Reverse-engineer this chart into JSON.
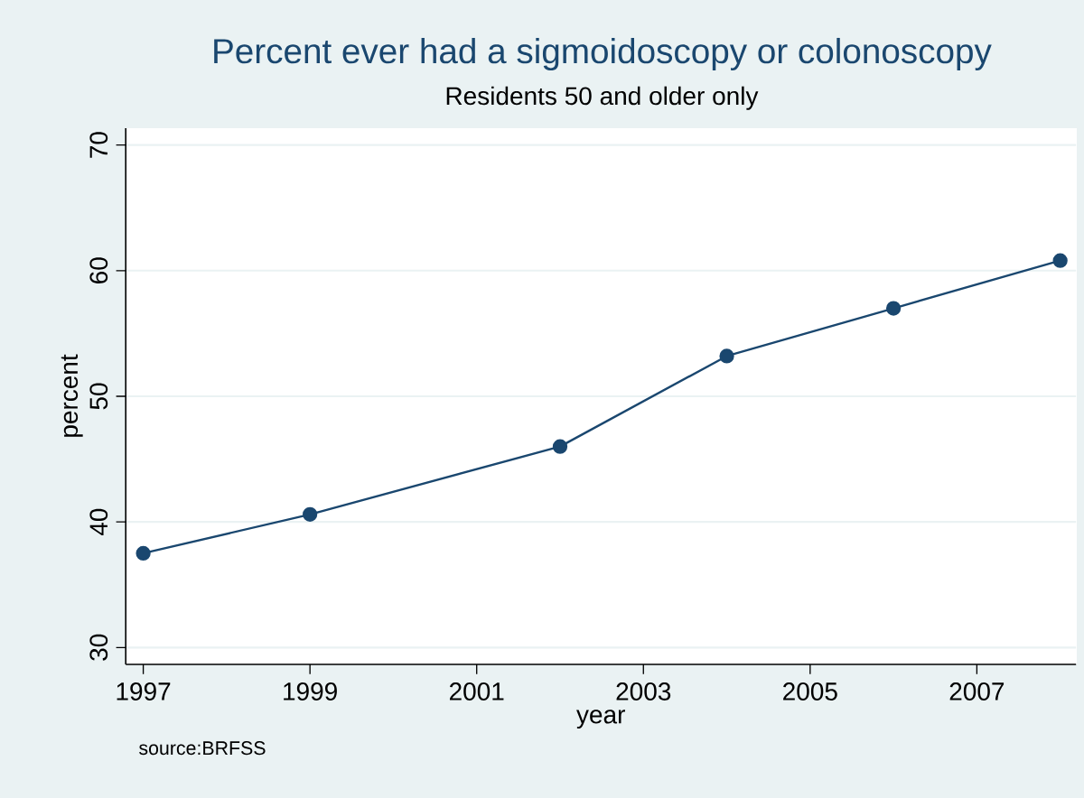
{
  "chart_data": {
    "type": "line",
    "title": "Percent  ever had a sigmoidoscopy or colonoscopy",
    "subtitle": "Residents 50 and older only",
    "xlabel": "year",
    "ylabel": "percent",
    "x": [
      1997,
      1999,
      2002,
      2004,
      2006,
      2008
    ],
    "series": [
      {
        "color": "#1a476f",
        "values": [
          37.5,
          40.6,
          46.0,
          53.2,
          57.0,
          60.8
        ]
      }
    ],
    "xlim": [
      1996.79,
      2008.19
    ],
    "ylim": [
      28.66,
      71.34
    ],
    "xticks": [
      1997,
      1999,
      2001,
      2003,
      2005,
      2007
    ],
    "yticks": [
      30,
      40,
      50,
      60,
      70
    ],
    "grid": "y",
    "marker": "circle",
    "line_style": "solid",
    "annotations": [
      "source:BRFSS"
    ]
  }
}
